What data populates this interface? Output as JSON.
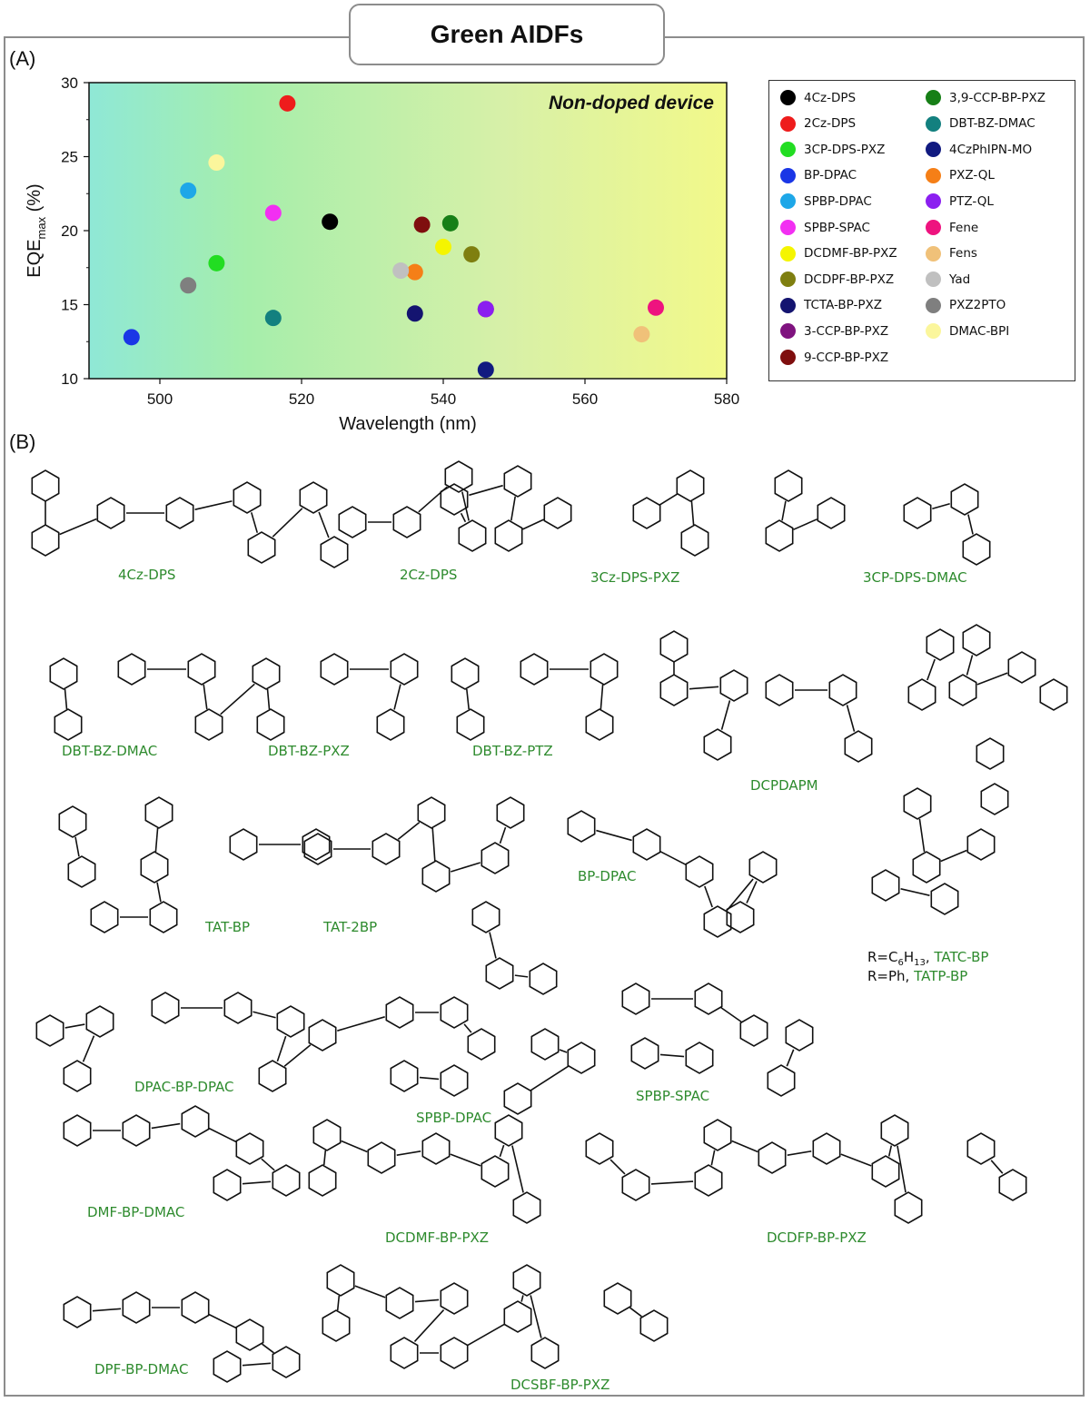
{
  "figure": {
    "title": "Green AIDFs",
    "panel_a_label": "(A)",
    "panel_b_label": "(B)"
  },
  "chart_data": {
    "type": "scatter",
    "title": "",
    "annotation": "Non-doped device",
    "xlabel": "Wavelength (nm)",
    "ylabel_main": "EQE",
    "ylabel_sub": "max",
    "ylabel_unit": " (%)",
    "xlim": [
      490,
      580
    ],
    "ylim": [
      10,
      30
    ],
    "xticks": [
      500,
      520,
      540,
      560,
      580
    ],
    "yticks": [
      10,
      15,
      20,
      25,
      30
    ],
    "grid": false,
    "legend_position": "right",
    "background": "horizontal gradient from teal (#8fe8d2) to light yellow (#f2f98a)",
    "series": [
      {
        "name": "4Cz-DPS",
        "color": "#000000",
        "x": 524,
        "y": 20.6
      },
      {
        "name": "2Cz-DPS",
        "color": "#ee1c1c",
        "x": 518,
        "y": 28.6
      },
      {
        "name": "3CP-DPS-PXZ",
        "color": "#22dd22",
        "x": 508,
        "y": 17.8
      },
      {
        "name": "BP-DPAC",
        "color": "#1a36e6",
        "x": 496,
        "y": 12.8
      },
      {
        "name": "SPBP-DPAC",
        "color": "#1ea7e8",
        "x": 504,
        "y": 22.7
      },
      {
        "name": "SPBP-SPAC",
        "color": "#f22ff2",
        "x": 516,
        "y": 21.2
      },
      {
        "name": "DCDMF-BP-PXZ",
        "color": "#f5f500",
        "x": 540,
        "y": 18.9
      },
      {
        "name": "DCDPF-BP-PXZ",
        "color": "#7f7f10",
        "x": 544,
        "y": 18.4
      },
      {
        "name": "TCTA-BP-PXZ",
        "color": "#141470",
        "x": 536,
        "y": 14.4
      },
      {
        "name": "3-CCP-BP-PXZ",
        "color": "#7f137f",
        "x": 546,
        "y": 14.7
      },
      {
        "name": "9-CCP-BP-PXZ",
        "color": "#7f0e0e",
        "x": 537,
        "y": 20.4
      },
      {
        "name": "3,9-CCP-BP-PXZ",
        "color": "#177f17",
        "x": 541,
        "y": 20.5
      },
      {
        "name": "DBT-BZ-DMAC",
        "color": "#13807f",
        "x": 516,
        "y": 14.1
      },
      {
        "name": "4CzPhIPN-MO",
        "color": "#111a80",
        "x": 546,
        "y": 10.6
      },
      {
        "name": "PXZ-QL",
        "color": "#f57f17",
        "x": 536,
        "y": 17.2
      },
      {
        "name": "PTZ-QL",
        "color": "#8b1ff0",
        "x": 546,
        "y": 14.7
      },
      {
        "name": "Fene",
        "color": "#ee137f",
        "x": 570,
        "y": 14.8
      },
      {
        "name": "Fens",
        "color": "#f0c179",
        "x": 568,
        "y": 13.0
      },
      {
        "name": "Yad",
        "color": "#c0c0c0",
        "x": 534,
        "y": 17.3
      },
      {
        "name": "PXZ2PTO",
        "color": "#7f7f7f",
        "x": 504,
        "y": 16.3
      },
      {
        "name": "DMAC-BPI",
        "color": "#fbf69c",
        "x": 508,
        "y": 24.6
      }
    ]
  },
  "structures": {
    "labels": [
      "4Cz-DPS",
      "2Cz-DPS",
      "3Cz-DPS-PXZ",
      "3CP-DPS-DMAC",
      "DBT-BZ-DMAC",
      "DBT-BZ-PXZ",
      "DBT-BZ-PTZ",
      "DCPDAPM",
      "TAT-BP",
      "TAT-2BP",
      "BP-DPAC",
      "DPAC-BP-DPAC",
      "SPBP-DPAC",
      "SPBP-SPAC",
      "DMF-BP-DMAC",
      "DCDMF-BP-PXZ",
      "DCDFP-BP-PXZ",
      "DPF-BP-DMAC",
      "DCSBF-BP-PXZ"
    ],
    "tatc_line": {
      "prefix": "R=C",
      "sub": "6",
      "mid": "H",
      "sub2": "13",
      "sep": ", ",
      "name": "TATC-BP"
    },
    "tatp_line": {
      "prefix": "R=Ph, ",
      "name": "TATP-BP"
    }
  }
}
